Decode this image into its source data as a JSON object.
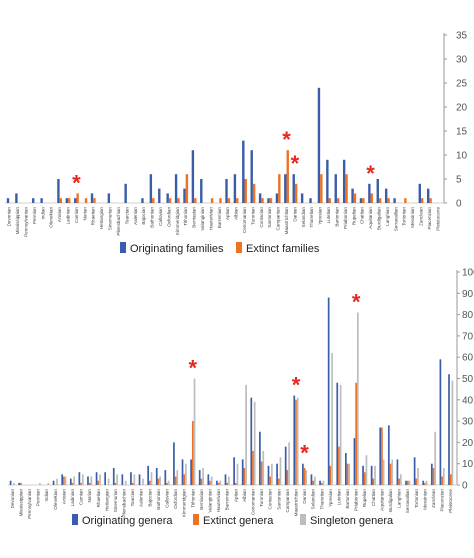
{
  "chart_data": [
    {
      "type": "bar",
      "categories": [
        "Devonian",
        "Mississippian",
        "Pennsylvanian",
        "Permian",
        "Indian",
        "Olenekian",
        "Anisian",
        "Ladinian",
        "Carnian",
        "Norian",
        "Rhaetian",
        "Hettangian",
        "Sinemurian",
        "Pliensbachian",
        "Toarcian",
        "Aalenian",
        "Bajocian",
        "Bathonian",
        "Callovian",
        "Oxfordian",
        "Kimmeridgian",
        "Tithonian",
        "Berriasian",
        "Valanginian",
        "Hauterivian",
        "Barremian",
        "Aptian",
        "Albian",
        "Cenomanian",
        "Turonian",
        "Coniacian",
        "Santonian",
        "Campanian",
        "Maastrichtian",
        "Danian",
        "Selandian",
        "Thanetian",
        "Ypresian",
        "Lutetian",
        "Bartonian",
        "Priabonian",
        "Rupelian",
        "Chattian",
        "Aquitanian",
        "Burdigalian",
        "Langhian",
        "Serravallian",
        "Tortonian",
        "Messinian",
        "Zanclean",
        "Piacenzian",
        "Pleistocene"
      ],
      "series": [
        {
          "name": "Originating families",
          "color": "#3a5da8",
          "values": [
            1,
            2,
            0,
            1,
            1,
            0,
            5,
            1,
            1,
            0,
            2,
            0,
            2,
            0,
            4,
            0,
            1,
            6,
            3,
            2,
            6,
            3,
            11,
            5,
            0,
            0,
            5,
            6,
            13,
            11,
            2,
            1,
            2,
            6,
            6,
            2,
            1,
            24,
            9,
            6,
            9,
            3,
            1,
            4,
            5,
            3,
            1,
            0,
            0,
            4,
            3,
            0
          ]
        },
        {
          "name": "Extinct families",
          "color": "#ec7224",
          "values": [
            0,
            0,
            0,
            0,
            0,
            0,
            1,
            1,
            2,
            1,
            1,
            0,
            0,
            0,
            0,
            0,
            0,
            1,
            0,
            1,
            1,
            6,
            1,
            0,
            1,
            1,
            1,
            1,
            5,
            4,
            1,
            1,
            6,
            11,
            4,
            0,
            0,
            6,
            1,
            1,
            6,
            2,
            1,
            2,
            1,
            1,
            0,
            1,
            0,
            1,
            1,
            0
          ]
        }
      ],
      "asterisks": [
        8,
        33,
        34,
        43
      ],
      "ylim": [
        0,
        35
      ],
      "yticks": [
        0,
        5,
        10,
        15,
        20,
        25,
        30,
        35
      ],
      "legend_position": "bottom"
    },
    {
      "type": "bar",
      "categories": [
        "Devonian",
        "Mississippian",
        "Pennsylvanian",
        "Permian",
        "Indian",
        "Olenekian",
        "Anisian",
        "Ladinian",
        "Carnian",
        "Norian",
        "Rhaetian",
        "Hettangian",
        "Sinemurian",
        "Pliensbachian",
        "Toarcian",
        "Aalenian",
        "Bajocian",
        "Bathonian",
        "Callovian",
        "Oxfordian",
        "Kimmeridgian",
        "Tithonian",
        "Berriasian",
        "Valanginian",
        "Hauterivian",
        "Barremian",
        "Aptian",
        "Albian",
        "Cenomanian",
        "Turonian",
        "Coniacian",
        "Santonian",
        "Campanian",
        "Maastrichtian",
        "Danian",
        "Selandian",
        "Thanetian",
        "Ypresian",
        "Lutetian",
        "Bartonian",
        "Priabonian",
        "Rupelian",
        "Chattian",
        "Aquitanian",
        "Burdigalian",
        "Langhian",
        "Serravallian",
        "Tortonian",
        "Messinian",
        "Zanclean",
        "Piacenzian",
        "Pleistocene"
      ],
      "series": [
        {
          "name": "Originating genera",
          "color": "#3a5da8",
          "values": [
            2,
            1,
            0,
            0,
            0,
            2,
            5,
            3,
            6,
            4,
            6,
            6,
            8,
            5,
            6,
            5,
            9,
            8,
            7,
            20,
            12,
            12,
            7,
            5,
            2,
            5,
            13,
            12,
            41,
            25,
            9,
            10,
            18,
            42,
            10,
            5,
            2,
            88,
            48,
            15,
            22,
            9,
            9,
            27,
            28,
            12,
            2,
            13,
            2,
            10,
            59,
            52
          ]
        },
        {
          "name": "Extinct genera",
          "color": "#ec7224",
          "values": [
            0,
            1,
            0,
            0,
            0,
            0,
            4,
            1,
            1,
            1,
            2,
            0,
            1,
            0,
            1,
            0,
            2,
            3,
            1,
            4,
            5,
            30,
            3,
            2,
            1,
            1,
            1,
            8,
            16,
            11,
            4,
            3,
            7,
            40,
            8,
            2,
            1,
            9,
            18,
            10,
            48,
            6,
            3,
            27,
            10,
            3,
            2,
            3,
            1,
            8,
            4,
            5
          ]
        },
        {
          "name": "Singleton genera",
          "color": "#bdbdbd",
          "values": [
            1,
            0,
            0,
            1,
            1,
            3,
            4,
            4,
            5,
            4,
            5,
            3,
            5,
            2,
            5,
            3,
            6,
            4,
            2,
            7,
            10,
            50,
            8,
            4,
            2,
            4,
            10,
            47,
            39,
            16,
            10,
            13,
            20,
            41,
            7,
            4,
            2,
            62,
            47,
            10,
            81,
            14,
            9,
            12,
            12,
            5,
            2,
            8,
            2,
            25,
            8,
            49
          ]
        }
      ],
      "asterisks": [
        21,
        33,
        34,
        40
      ],
      "ylim": [
        0,
        100
      ],
      "yticks": [
        0,
        10,
        20,
        30,
        40,
        50,
        60,
        70,
        80,
        90,
        100
      ],
      "legend_position": "bottom"
    }
  ]
}
